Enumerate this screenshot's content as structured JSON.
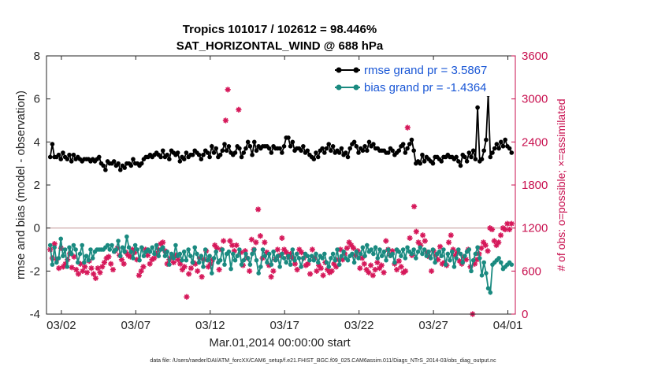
{
  "chart_data": {
    "type": "line",
    "title_line1": "Tropics 101017 / 102612 = 98.446%",
    "title_line2": "SAT_HORIZONTAL_WIND @ 688 hPa",
    "xlabel": "Mar.01,2014 00:00:00 start",
    "ylabel": "rmse and bias (model - observation)",
    "ylabel_right": "# of obs: o=possible; ×=assimilated",
    "footer": "data file: /Users/raeder/DAI/ATM_forcXX/CAM6_setup/f.e21.FHIST_BGC.f09_025.CAM6assim.011/Diags_NTrS_2014-03/obs_diag_output.nc",
    "xlim": [
      0,
      31.5
    ],
    "ylim": [
      -4,
      8
    ],
    "ylim_right": [
      0,
      3600
    ],
    "x_ticks": [
      1,
      6,
      11,
      16,
      21,
      26,
      31
    ],
    "x_tick_labels": [
      "03/02",
      "03/07",
      "03/12",
      "03/17",
      "03/22",
      "03/27",
      "04/01"
    ],
    "y_ticks": [
      -4,
      -2,
      0,
      2,
      4,
      6,
      8
    ],
    "y_tick_labels": [
      "-4",
      "-2",
      "0",
      "2",
      "4",
      "6",
      "8"
    ],
    "y_right_ticks": [
      0,
      600,
      1200,
      1800,
      2400,
      3000,
      3600
    ],
    "y_right_tick_labels": [
      "0",
      "600",
      "1200",
      "1800",
      "2400",
      "3000",
      "3600"
    ],
    "legend": [
      "rmse grand pr = 3.5867",
      "bias grand pr = -1.4364"
    ],
    "legend_position": "top-right",
    "colors": {
      "rmse": "#000000",
      "bias": "#1a8a80",
      "obs": "#d6185a",
      "right_axis": "#c8104f",
      "legend_text": "#1a57d6",
      "zero_line": "#c8a0a0"
    },
    "series": [
      {
        "name": "rmse",
        "values": [
          3.3,
          3.9,
          3.3,
          3.3,
          3.4,
          3.2,
          3.5,
          3.3,
          3.2,
          3.4,
          3.1,
          3.4,
          3.2,
          3.3,
          3.2,
          3.1,
          3.2,
          3.2,
          3.2,
          3.1,
          3.2,
          3.1,
          3.2,
          3.3,
          3.0,
          2.9,
          2.7,
          3.1,
          3.0,
          3.0,
          3.1,
          2.9,
          3.0,
          2.7,
          2.9,
          2.8,
          3.0,
          3.0,
          2.9,
          3.2,
          3.0,
          3.0,
          2.9,
          3.0,
          3.2,
          3.3,
          3.3,
          3.4,
          3.3,
          3.4,
          3.5,
          3.4,
          3.3,
          3.6,
          3.3,
          3.4,
          3.2,
          3.6,
          3.5,
          3.4,
          3.5,
          3.1,
          3.3,
          3.2,
          3.5,
          3.3,
          3.4,
          3.4,
          3.6,
          3.5,
          3.4,
          3.2,
          3.4,
          3.6,
          3.5,
          3.3,
          3.8,
          3.5,
          3.7,
          3.3,
          3.4,
          3.6,
          3.9,
          3.6,
          3.8,
          3.5,
          3.4,
          3.5,
          3.8,
          3.7,
          3.3,
          3.5,
          3.7,
          4.0,
          3.8,
          3.4,
          4.0,
          3.6,
          3.8,
          3.7,
          3.8,
          3.8,
          3.8,
          3.7,
          3.5,
          3.8,
          3.7,
          3.7,
          3.7,
          3.5,
          3.8,
          4.2,
          4.2,
          3.8,
          4.0,
          3.6,
          3.7,
          3.7,
          3.6,
          3.8,
          3.5,
          3.6,
          3.4,
          3.3,
          3.2,
          3.5,
          3.3,
          3.6,
          3.7,
          3.5,
          3.7,
          3.9,
          3.6,
          3.8,
          3.5,
          3.6,
          3.5,
          3.7,
          3.4,
          3.5,
          3.3,
          3.7,
          3.9,
          4.0,
          3.8,
          3.5,
          3.7,
          3.6,
          3.8,
          3.6,
          4.0,
          3.8,
          3.9,
          3.7,
          3.7,
          3.6,
          3.6,
          3.6,
          3.5,
          3.5,
          3.7,
          3.6,
          3.4,
          3.5,
          3.6,
          3.8,
          3.9,
          3.5,
          3.7,
          3.9,
          4.1,
          3.6,
          3.0,
          3.1,
          3.0,
          3.4,
          3.1,
          3.3,
          3.2,
          3.1,
          3.0,
          3.3,
          3.3,
          3.2,
          3.1,
          3.3,
          3.3,
          3.4,
          3.3,
          3.3,
          3.2,
          3.3,
          3.1,
          2.9,
          3.4,
          3.3,
          3.1,
          3.5,
          3.3,
          3.6,
          3.2,
          5.6,
          3.1,
          3.2,
          3.6,
          4.1,
          6.2,
          3.3,
          3.5,
          3.7,
          3.9,
          3.7,
          4.0,
          3.8,
          4.1,
          3.8,
          3.7,
          3.5
        ],
        "marker": "diamond"
      },
      {
        "name": "bias",
        "values": [
          -0.8,
          -1.7,
          -0.9,
          -1.6,
          -1.4,
          -0.5,
          -1.3,
          -1.0,
          -1.8,
          -0.9,
          -1.2,
          -0.8,
          -1.0,
          -1.6,
          -1.2,
          -0.8,
          -1.6,
          -1.3,
          -1.5,
          -1.0,
          -1.4,
          -1.1,
          -1.0,
          -1.0,
          -1.0,
          -1.0,
          -0.9,
          -0.8,
          -1.0,
          -0.8,
          -1.1,
          -1.0,
          -0.6,
          -1.3,
          -0.9,
          -1.1,
          -0.4,
          -0.9,
          -1.1,
          -1.4,
          -0.8,
          -1.0,
          -1.5,
          -0.9,
          -1.3,
          -1.1,
          -1.0,
          -1.1,
          -0.9,
          -1.2,
          -0.8,
          -1.3,
          -1.0,
          -0.9,
          -1.3,
          -1.1,
          -1.7,
          -1.2,
          -1.4,
          -0.8,
          -1.3,
          -1.2,
          -1.5,
          -1.1,
          -1.5,
          -1.0,
          -1.3,
          -1.6,
          -0.9,
          -1.2,
          -1.6,
          -1.3,
          -1.8,
          -1.0,
          -1.5,
          -1.3,
          -2.1,
          -1.4,
          -1.1,
          -1.6,
          -1.5,
          -1.0,
          -1.7,
          -1.2,
          -1.1,
          -1.9,
          -1.2,
          -1.5,
          -1.3,
          -1.0,
          -1.7,
          -1.5,
          -1.2,
          -1.4,
          -1.7,
          -1.2,
          -1.0,
          -1.5,
          -2.1,
          -1.8,
          -1.0,
          -1.3,
          -1.6,
          -1.2,
          -1.7,
          -1.1,
          -1.5,
          -1.3,
          -1.8,
          -1.2,
          -1.4,
          -1.6,
          -1.3,
          -1.7,
          -1.0,
          -1.5,
          -1.2,
          -1.4,
          -1.8,
          -1.4,
          -1.2,
          -1.3,
          -1.5,
          -1.3,
          -1.5,
          -1.2,
          -1.6,
          -1.3,
          -1.4,
          -1.2,
          -1.6,
          -1.8,
          -1.4,
          -1.2,
          -1.5,
          -1.0,
          -1.7,
          -1.3,
          -1.1,
          -1.4,
          -1.5,
          -1.3,
          -1.2,
          -1.6,
          -1.1,
          -1.4,
          -1.2,
          -0.9,
          -1.3,
          -0.8,
          -1.1,
          -1.0,
          -1.2,
          -0.9,
          -1.4,
          -1.0,
          -1.3,
          -1.1,
          -1.5,
          -1.0,
          -1.3,
          -1.2,
          -1.6,
          -1.0,
          -1.1,
          -1.3,
          -1.0,
          -1.4,
          -0.9,
          -1.1,
          -1.2,
          -1.0,
          -1.4,
          -1.1,
          -0.9,
          -1.2,
          -1.0,
          -1.3,
          -1.1,
          -1.4,
          -1.0,
          -1.6,
          -1.2,
          -1.1,
          -1.3,
          -1.0,
          -1.7,
          -1.2,
          -1.5,
          -1.1,
          -1.8,
          -1.4,
          -1.0,
          -1.2,
          -1.6,
          -1.3,
          -1.1,
          -1.0,
          -2.0,
          -1.5,
          -1.2,
          -0.9,
          -1.4,
          -2.2,
          -1.6,
          -2.1,
          -2.8,
          -3.0,
          -1.7,
          -1.6,
          -1.5,
          -1.4,
          -1.6,
          -1.9,
          -1.8,
          -1.7,
          -1.6,
          -1.7
        ],
        "marker": "circle"
      },
      {
        "name": "obs",
        "axis": "right",
        "values": [
          900,
          780,
          980,
          760,
          640,
          920,
          660,
          700,
          760,
          840,
          650,
          800,
          620,
          560,
          700,
          600,
          660,
          580,
          740,
          640,
          560,
          500,
          640,
          580,
          660,
          720,
          780,
          800,
          700,
          620,
          880,
          920,
          820,
          760,
          700,
          860,
          820,
          800,
          900,
          860,
          760,
          540,
          600,
          660,
          900,
          820,
          700,
          760,
          780,
          840,
          900,
          980,
          1000,
          880,
          700,
          760,
          800,
          720,
          820,
          760,
          700,
          620,
          660,
          240,
          560,
          640,
          720,
          700,
          600,
          780,
          520,
          760,
          880,
          660,
          700,
          760,
          960,
          920,
          620,
          900,
          1020,
          2700,
          3130,
          1020,
          960,
          880,
          960,
          2850,
          860,
          680,
          880,
          780,
          600,
          1040,
          900,
          1000,
          1460,
          1090,
          780,
          1000,
          860,
          680,
          520,
          600,
          760,
          900,
          820,
          1060,
          900,
          860,
          800,
          840,
          780,
          700,
          620,
          900,
          860,
          780,
          680,
          700,
          560,
          900,
          780,
          600,
          680,
          640,
          540,
          720,
          620,
          580,
          600,
          700,
          660,
          760,
          900,
          760,
          840,
          920,
          1000,
          960,
          920,
          820,
          880,
          640,
          780,
          700,
          620,
          580,
          680,
          540,
          620,
          720,
          640,
          680,
          580,
          1020,
          900,
          820,
          880,
          700,
          620,
          740,
          660,
          580,
          600,
          2600,
          1060,
          820,
          1500,
          1150,
          1000,
          960,
          1100,
          1020,
          860,
          800,
          600,
          880,
          820,
          760,
          940,
          700,
          720,
          680,
          1000,
          1100,
          900,
          820,
          860,
          740,
          700,
          800,
          760,
          900,
          660,
          0,
          700,
          760,
          840,
          920,
          1000,
          960,
          880,
          1200,
          1180,
          1020,
          960,
          1000,
          1100,
          1200,
          1180,
          1260,
          1180,
          1260
        ],
        "marker": "asterisk"
      }
    ]
  }
}
